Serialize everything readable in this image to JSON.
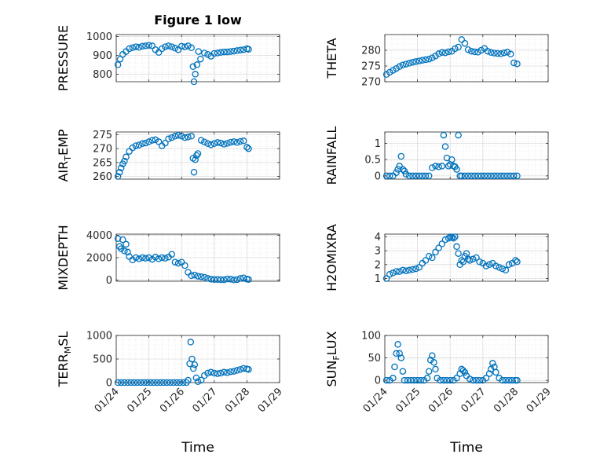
{
  "figure": {
    "title": "Figure 1 low",
    "x_axis_label": "Time",
    "x_ticks": [
      "01/24",
      "01/25",
      "01/26",
      "01/27",
      "01/28",
      "01/29"
    ],
    "marker_color": "#0072BD"
  },
  "chart_data": [
    {
      "type": "scatter",
      "title": "Figure 1 low",
      "ylabel": "PRESSURE",
      "xlabel": "",
      "xlim": [
        0,
        5
      ],
      "ylim": [
        760,
        1010
      ],
      "yticks": [
        800,
        900,
        1000
      ],
      "grid": true,
      "x": [
        0.05,
        0.12,
        0.2,
        0.3,
        0.4,
        0.5,
        0.6,
        0.7,
        0.8,
        0.9,
        1.0,
        1.1,
        1.2,
        1.3,
        1.4,
        1.5,
        1.6,
        1.7,
        1.8,
        1.9,
        2.0,
        2.1,
        2.2,
        2.3,
        2.35,
        2.38,
        2.42,
        2.47,
        2.52,
        2.58,
        2.7,
        2.8,
        2.9,
        3.0,
        3.1,
        3.2,
        3.3,
        3.4,
        3.5,
        3.6,
        3.7,
        3.8,
        3.9,
        4.0,
        4.05
      ],
      "y": [
        850,
        880,
        905,
        920,
        935,
        940,
        945,
        942,
        948,
        950,
        953,
        950,
        930,
        915,
        935,
        945,
        950,
        945,
        938,
        930,
        948,
        945,
        950,
        940,
        840,
        760,
        800,
        850,
        920,
        880,
        912,
        905,
        895,
        910,
        912,
        915,
        918,
        918,
        920,
        922,
        925,
        928,
        930,
        935,
        932
      ]
    },
    {
      "type": "scatter",
      "ylabel": "THETA",
      "xlabel": "",
      "xlim": [
        0,
        5
      ],
      "ylim": [
        270,
        285
      ],
      "yticks": [
        270,
        275,
        280
      ],
      "grid": true,
      "x": [
        0.05,
        0.15,
        0.25,
        0.35,
        0.45,
        0.55,
        0.65,
        0.75,
        0.85,
        0.95,
        1.05,
        1.15,
        1.25,
        1.35,
        1.45,
        1.55,
        1.65,
        1.75,
        1.85,
        1.95,
        2.05,
        2.15,
        2.25,
        2.35,
        2.45,
        2.55,
        2.65,
        2.75,
        2.85,
        2.95,
        3.05,
        3.15,
        3.25,
        3.35,
        3.45,
        3.55,
        3.65,
        3.75,
        3.85,
        3.95,
        4.05
      ],
      "y": [
        272.3,
        273,
        273.6,
        274.2,
        274.8,
        275.3,
        275.6,
        275.9,
        276.2,
        276.4,
        276.6,
        276.8,
        277,
        277.2,
        277.6,
        278.2,
        278.9,
        279.3,
        279.2,
        279.5,
        279.7,
        280.5,
        281,
        283.4,
        282.2,
        280.2,
        279.7,
        279.5,
        279.4,
        280,
        280.6,
        279.7,
        279.3,
        279.1,
        279,
        278.9,
        279.2,
        279.4,
        278.8,
        276,
        275.7
      ]
    },
    {
      "type": "scatter",
      "ylabel": "AIR_TEMP",
      "xlabel": "",
      "xlim": [
        0,
        5
      ],
      "ylim": [
        259,
        276
      ],
      "yticks": [
        260,
        265,
        270,
        275
      ],
      "grid": true,
      "x": [
        0.05,
        0.1,
        0.15,
        0.2,
        0.25,
        0.3,
        0.4,
        0.5,
        0.6,
        0.7,
        0.8,
        0.9,
        1.0,
        1.1,
        1.2,
        1.3,
        1.4,
        1.5,
        1.6,
        1.7,
        1.8,
        1.9,
        2.0,
        2.1,
        2.2,
        2.3,
        2.35,
        2.38,
        2.42,
        2.46,
        2.5,
        2.6,
        2.7,
        2.8,
        2.9,
        3.0,
        3.1,
        3.2,
        3.3,
        3.4,
        3.5,
        3.6,
        3.7,
        3.8,
        3.9,
        4.0,
        4.05
      ],
      "y": [
        260,
        261.5,
        263,
        264.5,
        265.5,
        267,
        269,
        270.3,
        271,
        271.3,
        271.8,
        272,
        272.5,
        273,
        273.2,
        272.5,
        271,
        272,
        273.5,
        274,
        274.5,
        274.8,
        274.5,
        274,
        274.2,
        274.5,
        266.5,
        261.5,
        266,
        267.5,
        268.2,
        273,
        272.4,
        271.8,
        271.4,
        271.8,
        272.2,
        272,
        271.6,
        271.9,
        272.3,
        272.5,
        272.2,
        272.6,
        272.8,
        270.5,
        270
      ]
    },
    {
      "type": "scatter",
      "ylabel": "RAINFALL",
      "xlabel": "",
      "xlim": [
        0,
        5
      ],
      "ylim": [
        -0.1,
        1.35
      ],
      "yticks": [
        0,
        0.5,
        1
      ],
      "grid": true,
      "x": [
        0.05,
        0.15,
        0.25,
        0.35,
        0.4,
        0.45,
        0.5,
        0.55,
        0.6,
        0.65,
        0.75,
        0.85,
        0.95,
        1.05,
        1.15,
        1.25,
        1.35,
        1.45,
        1.55,
        1.65,
        1.75,
        1.8,
        1.85,
        1.9,
        1.95,
        2.0,
        2.05,
        2.1,
        2.15,
        2.2,
        2.25,
        2.3,
        2.35,
        2.45,
        2.55,
        2.65,
        2.75,
        2.85,
        2.95,
        3.05,
        3.15,
        3.25,
        3.35,
        3.45,
        3.55,
        3.65,
        3.75,
        3.85,
        3.95,
        4.05
      ],
      "y": [
        0,
        0,
        0,
        0.1,
        0.2,
        0.3,
        0.6,
        0.2,
        0.15,
        0.05,
        0,
        0,
        0,
        0,
        0,
        0,
        0,
        0.25,
        0.3,
        0.28,
        0.3,
        1.25,
        0.9,
        0.55,
        0.3,
        0.35,
        0.5,
        0.3,
        0.28,
        0.2,
        1.25,
        0,
        0,
        0,
        0,
        0,
        0,
        0,
        0,
        0,
        0,
        0,
        0,
        0,
        0,
        0,
        0,
        0,
        0,
        0
      ]
    },
    {
      "type": "scatter",
      "ylabel": "MIXDEPTH",
      "xlabel": "",
      "xlim": [
        0,
        5
      ],
      "ylim": [
        -100,
        4100
      ],
      "yticks": [
        0,
        2000,
        4000
      ],
      "grid": true,
      "x": [
        0.05,
        0.1,
        0.15,
        0.2,
        0.25,
        0.3,
        0.35,
        0.4,
        0.5,
        0.6,
        0.7,
        0.8,
        0.9,
        1.0,
        1.1,
        1.2,
        1.3,
        1.4,
        1.5,
        1.6,
        1.7,
        1.8,
        1.9,
        2.0,
        2.1,
        2.2,
        2.3,
        2.4,
        2.5,
        2.6,
        2.7,
        2.8,
        2.9,
        3.0,
        3.1,
        3.2,
        3.3,
        3.4,
        3.5,
        3.6,
        3.7,
        3.8,
        3.9,
        4.0,
        4.05
      ],
      "y": [
        3700,
        3000,
        2800,
        3600,
        2600,
        3200,
        2500,
        2100,
        1800,
        2000,
        1900,
        2000,
        1950,
        2000,
        1850,
        2050,
        1900,
        2000,
        1950,
        2050,
        2300,
        1600,
        1500,
        1600,
        1300,
        700,
        400,
        450,
        350,
        300,
        250,
        150,
        80,
        50,
        60,
        40,
        30,
        100,
        80,
        20,
        40,
        150,
        200,
        80,
        60
      ]
    },
    {
      "type": "scatter",
      "ylabel": "H2OMIXRA",
      "xlabel": "",
      "xlim": [
        0,
        5
      ],
      "ylim": [
        0.8,
        4.2
      ],
      "yticks": [
        1,
        2,
        3,
        4
      ],
      "grid": true,
      "x": [
        0.05,
        0.15,
        0.25,
        0.35,
        0.45,
        0.55,
        0.65,
        0.75,
        0.85,
        0.95,
        1.05,
        1.15,
        1.25,
        1.35,
        1.45,
        1.55,
        1.65,
        1.75,
        1.85,
        1.95,
        2.0,
        2.05,
        2.1,
        2.15,
        2.2,
        2.25,
        2.3,
        2.35,
        2.4,
        2.45,
        2.5,
        2.55,
        2.6,
        2.7,
        2.8,
        2.9,
        3.0,
        3.1,
        3.2,
        3.3,
        3.4,
        3.5,
        3.6,
        3.7,
        3.8,
        3.9,
        4.0,
        4.05
      ],
      "y": [
        1.0,
        1.3,
        1.4,
        1.5,
        1.5,
        1.6,
        1.55,
        1.6,
        1.65,
        1.7,
        1.8,
        2.1,
        2.3,
        2.6,
        2.5,
        2.9,
        3.2,
        3.5,
        3.8,
        3.9,
        4.0,
        3.95,
        3.9,
        4.0,
        3.3,
        2.8,
        2.0,
        2.3,
        2.2,
        2.6,
        2.8,
        2.4,
        2.3,
        2.4,
        2.5,
        2.2,
        2.1,
        1.9,
        2.0,
        2.1,
        1.9,
        1.8,
        1.7,
        1.6,
        2.0,
        2.1,
        2.3,
        2.2
      ]
    },
    {
      "type": "scatter",
      "ylabel": "TERR_MSL",
      "xlabel": "Time",
      "xlim": [
        0,
        5
      ],
      "ylim": [
        0,
        1000
      ],
      "yticks": [
        0,
        500,
        1000
      ],
      "grid": true,
      "x": [
        0.05,
        0.15,
        0.25,
        0.35,
        0.45,
        0.55,
        0.65,
        0.75,
        0.85,
        0.95,
        1.05,
        1.15,
        1.25,
        1.35,
        1.45,
        1.55,
        1.65,
        1.75,
        1.85,
        1.95,
        2.05,
        2.15,
        2.2,
        2.25,
        2.28,
        2.32,
        2.36,
        2.4,
        2.45,
        2.5,
        2.6,
        2.7,
        2.8,
        2.9,
        3.0,
        3.1,
        3.2,
        3.3,
        3.4,
        3.5,
        3.6,
        3.7,
        3.8,
        3.9,
        4.0,
        4.05
      ],
      "y": [
        0,
        0,
        0,
        0,
        0,
        0,
        0,
        0,
        0,
        0,
        0,
        0,
        0,
        0,
        0,
        0,
        0,
        0,
        0,
        0,
        0,
        0,
        50,
        400,
        860,
        500,
        300,
        380,
        100,
        20,
        50,
        150,
        200,
        220,
        200,
        190,
        200,
        220,
        210,
        230,
        240,
        260,
        280,
        300,
        290,
        280
      ]
    },
    {
      "type": "scatter",
      "ylabel": "SUN_FLUX",
      "xlabel": "Time",
      "xlim": [
        0,
        5
      ],
      "ylim": [
        -5,
        100
      ],
      "yticks": [
        0,
        50,
        100
      ],
      "grid": true,
      "x": [
        0.05,
        0.15,
        0.25,
        0.3,
        0.35,
        0.4,
        0.45,
        0.5,
        0.55,
        0.6,
        0.7,
        0.8,
        0.9,
        1.0,
        1.1,
        1.2,
        1.3,
        1.35,
        1.4,
        1.45,
        1.5,
        1.55,
        1.6,
        1.7,
        1.8,
        1.9,
        2.0,
        2.1,
        2.2,
        2.3,
        2.35,
        2.4,
        2.45,
        2.5,
        2.6,
        2.7,
        2.8,
        2.9,
        3.0,
        3.1,
        3.2,
        3.25,
        3.3,
        3.35,
        3.4,
        3.5,
        3.6,
        3.7,
        3.8,
        3.9,
        4.0,
        4.05
      ],
      "y": [
        0,
        0,
        5,
        30,
        60,
        80,
        60,
        50,
        20,
        0,
        0,
        0,
        0,
        0,
        0,
        0,
        5,
        20,
        45,
        55,
        40,
        25,
        5,
        0,
        0,
        0,
        0,
        0,
        5,
        15,
        25,
        22,
        18,
        10,
        3,
        0,
        0,
        0,
        0,
        5,
        15,
        25,
        38,
        30,
        18,
        5,
        0,
        0,
        0,
        0,
        0,
        0
      ]
    }
  ]
}
